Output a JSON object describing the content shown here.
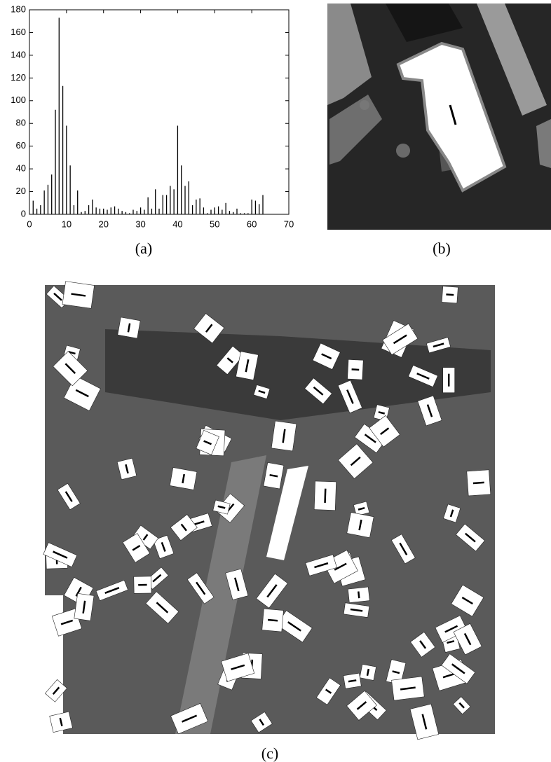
{
  "chart_data": {
    "type": "bar",
    "x": [
      1,
      2,
      3,
      4,
      5,
      6,
      7,
      8,
      9,
      10,
      11,
      12,
      13,
      14,
      15,
      16,
      17,
      18,
      19,
      20,
      21,
      22,
      23,
      24,
      25,
      26,
      27,
      28,
      29,
      30,
      31,
      32,
      33,
      34,
      35,
      36,
      37,
      38,
      39,
      40,
      41,
      42,
      43,
      44,
      45,
      46,
      47,
      48,
      49,
      50,
      51,
      52,
      53,
      54,
      55,
      56,
      57,
      58,
      59,
      60,
      61,
      62,
      63
    ],
    "values": [
      12,
      5,
      8,
      21,
      26,
      35,
      92,
      173,
      113,
      78,
      43,
      8,
      21,
      2,
      3,
      8,
      13,
      6,
      5,
      5,
      4,
      6,
      7,
      5,
      3,
      2,
      1,
      4,
      3,
      6,
      4,
      15,
      5,
      22,
      5,
      17,
      17,
      25,
      22,
      78,
      43,
      25,
      29,
      8,
      13,
      14,
      6,
      1,
      4,
      6,
      7,
      4,
      10,
      3,
      2,
      5,
      1,
      1,
      1,
      13,
      12,
      9,
      17
    ],
    "color": "#000000",
    "xlim": [
      0,
      70
    ],
    "xticks": [
      0,
      10,
      20,
      30,
      40,
      50,
      60,
      70
    ],
    "ylim": [
      0,
      180
    ],
    "yticks": [
      0,
      20,
      40,
      60,
      80,
      100,
      120,
      140,
      160,
      180
    ]
  },
  "captions": [
    "(a)",
    "(b)",
    "(c)"
  ]
}
